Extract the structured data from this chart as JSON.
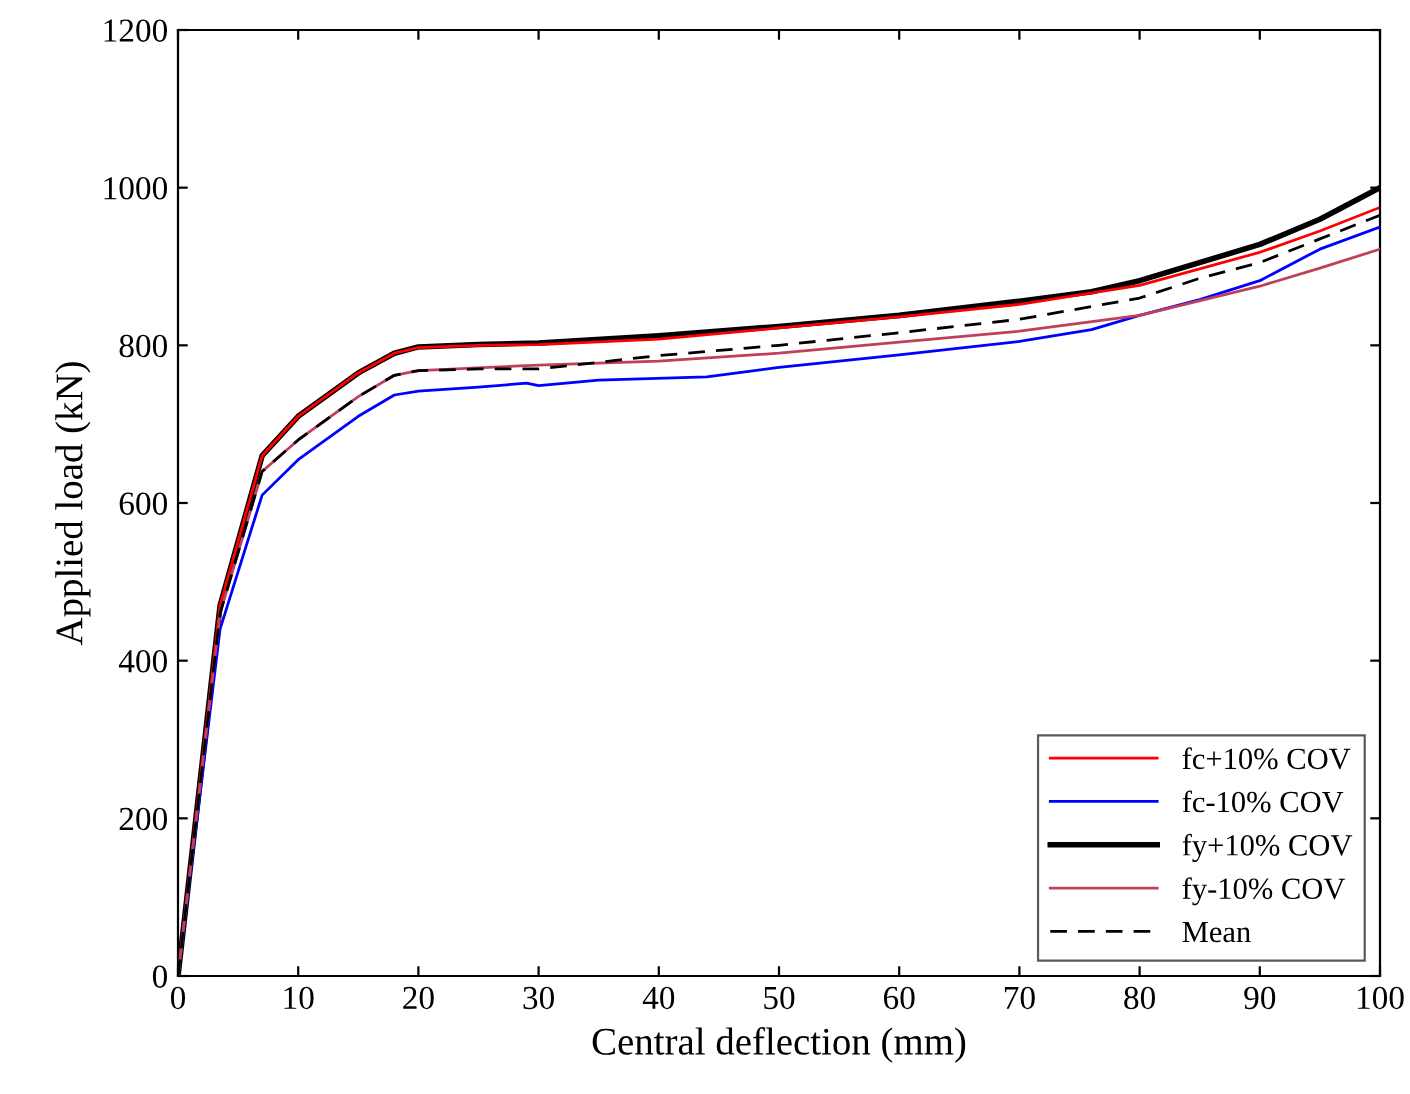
{
  "chart_data": {
    "type": "line",
    "xlabel": "Central deflection (mm)",
    "ylabel": "Applied load (kN)",
    "xlim": [
      0,
      100
    ],
    "ylim": [
      0,
      1200
    ],
    "xticks": [
      0,
      10,
      20,
      30,
      40,
      50,
      60,
      70,
      80,
      90,
      100
    ],
    "yticks": [
      0,
      200,
      400,
      600,
      800,
      1000,
      1200
    ],
    "grid": false,
    "legend": "bottom right",
    "series": [
      {
        "name": "fc+10% COV",
        "color": "#ff0000",
        "line_style": "solid",
        "x": [
          0,
          3.5,
          7,
          10,
          15,
          18,
          20,
          25,
          30,
          40,
          50,
          60,
          70,
          80,
          90,
          95,
          100
        ],
        "values": [
          0,
          470,
          660,
          710,
          765,
          790,
          797,
          800,
          801,
          808,
          822,
          836,
          852,
          876,
          918,
          945,
          975
        ]
      },
      {
        "name": "fc-10% COV",
        "color": "#0000ff",
        "line_style": "solid",
        "x": [
          0,
          3.5,
          7,
          10,
          15,
          18,
          20,
          25,
          29,
          30,
          35,
          44,
          50,
          60,
          70,
          76,
          80,
          85,
          90,
          95,
          100
        ],
        "values": [
          0,
          440,
          610,
          655,
          710,
          737,
          742,
          747,
          752,
          749,
          756,
          760,
          772,
          788,
          805,
          820,
          838,
          858,
          882,
          922,
          950
        ]
      },
      {
        "name": "fy+10% COV",
        "color": "#000000",
        "line_style": "solid",
        "x": [
          0,
          3.5,
          7,
          10,
          15,
          18,
          20,
          25,
          30,
          40,
          50,
          60,
          70,
          76,
          80,
          90,
          95,
          100
        ],
        "values": [
          0,
          470,
          660,
          710,
          765,
          790,
          798,
          801,
          803,
          812,
          824,
          838,
          856,
          868,
          882,
          928,
          960,
          1000
        ]
      },
      {
        "name": "fy-10% COV",
        "color": "#c0405a",
        "line_style": "solid",
        "x": [
          0,
          3.5,
          7,
          10,
          15,
          18,
          20,
          30,
          40,
          50,
          60,
          70,
          80,
          90,
          95,
          100
        ],
        "values": [
          0,
          460,
          640,
          680,
          735,
          762,
          768,
          775,
          780,
          790,
          804,
          818,
          838,
          875,
          898,
          922
        ]
      },
      {
        "name": "Mean",
        "color": "#000000",
        "line_style": "dashed",
        "x": [
          0,
          3.5,
          7,
          10,
          15,
          18,
          20,
          25,
          30,
          33,
          40,
          50,
          60,
          70,
          80,
          85,
          90,
          95,
          100
        ],
        "values": [
          0,
          460,
          640,
          680,
          735,
          762,
          768,
          770,
          770,
          775,
          787,
          800,
          816,
          833,
          860,
          885,
          905,
          935,
          965
        ]
      }
    ]
  }
}
